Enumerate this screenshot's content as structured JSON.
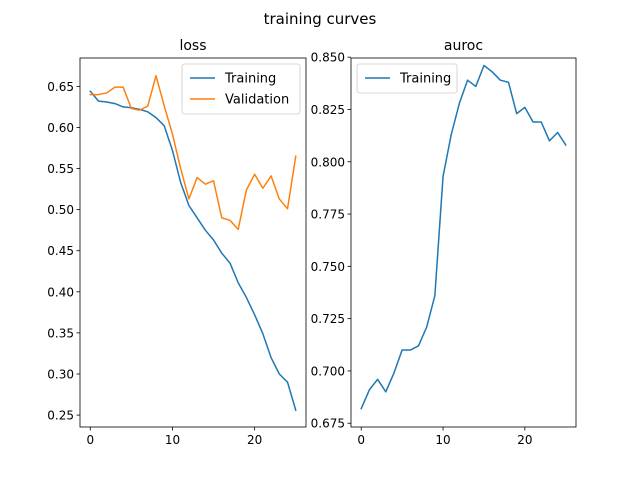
{
  "suptitle": "training curves",
  "colors": {
    "training": "#1f77b4",
    "validation": "#ff7f0e"
  },
  "chart_data": [
    {
      "type": "line",
      "title": "loss",
      "xlabel": "",
      "ylabel": "",
      "xlim": [
        -1.25,
        26.25
      ],
      "ylim": [
        0.2355,
        0.6845
      ],
      "xticks": [
        0,
        10,
        20
      ],
      "yticks": [
        0.25,
        0.3,
        0.35,
        0.4,
        0.45,
        0.5,
        0.55,
        0.6,
        0.65
      ],
      "ytick_labels": [
        "0.25",
        "0.30",
        "0.35",
        "0.40",
        "0.45",
        "0.50",
        "0.55",
        "0.60",
        "0.65"
      ],
      "grid": false,
      "legend": "top-right",
      "series": [
        {
          "name": "Training",
          "color": "#1f77b4",
          "x": [
            0,
            1,
            2,
            3,
            4,
            5,
            6,
            7,
            8,
            9,
            10,
            11,
            12,
            13,
            14,
            15,
            16,
            17,
            18,
            19,
            20,
            21,
            22,
            23,
            24,
            25
          ],
          "values": [
            0.644,
            0.632,
            0.631,
            0.629,
            0.625,
            0.624,
            0.622,
            0.619,
            0.612,
            0.602,
            0.572,
            0.533,
            0.505,
            0.49,
            0.475,
            0.463,
            0.447,
            0.435,
            0.411,
            0.393,
            0.372,
            0.349,
            0.32,
            0.3,
            0.29,
            0.256
          ]
        },
        {
          "name": "Validation",
          "color": "#ff7f0e",
          "x": [
            0,
            1,
            2,
            3,
            4,
            5,
            6,
            7,
            8,
            9,
            10,
            11,
            12,
            13,
            14,
            15,
            16,
            17,
            18,
            19,
            20,
            21,
            22,
            23,
            24,
            25
          ],
          "values": [
            0.64,
            0.64,
            0.642,
            0.649,
            0.649,
            0.623,
            0.621,
            0.626,
            0.663,
            0.626,
            0.592,
            0.55,
            0.513,
            0.539,
            0.531,
            0.535,
            0.49,
            0.487,
            0.476,
            0.524,
            0.543,
            0.526,
            0.541,
            0.513,
            0.501,
            0.565
          ]
        }
      ]
    },
    {
      "type": "line",
      "title": "auroc",
      "xlabel": "",
      "ylabel": "",
      "xlim": [
        -1.25,
        26.25
      ],
      "ylim": [
        0.6732,
        0.8496
      ],
      "xticks": [
        0,
        10,
        20
      ],
      "yticks": [
        0.675,
        0.7,
        0.725,
        0.75,
        0.775,
        0.8,
        0.825,
        0.85
      ],
      "ytick_labels": [
        "0.675",
        "0.700",
        "0.725",
        "0.750",
        "0.775",
        "0.800",
        "0.825",
        "0.850"
      ],
      "grid": false,
      "legend": "top-left",
      "series": [
        {
          "name": "Training",
          "color": "#1f77b4",
          "x": [
            0,
            1,
            2,
            3,
            4,
            5,
            6,
            7,
            8,
            9,
            10,
            11,
            12,
            13,
            14,
            15,
            16,
            17,
            18,
            19,
            20,
            21,
            22,
            23,
            24,
            25
          ],
          "values": [
            0.682,
            0.691,
            0.696,
            0.69,
            0.699,
            0.71,
            0.71,
            0.712,
            0.721,
            0.736,
            0.793,
            0.813,
            0.828,
            0.839,
            0.836,
            0.846,
            0.843,
            0.839,
            0.838,
            0.823,
            0.826,
            0.819,
            0.819,
            0.81,
            0.814,
            0.808
          ]
        }
      ]
    }
  ]
}
